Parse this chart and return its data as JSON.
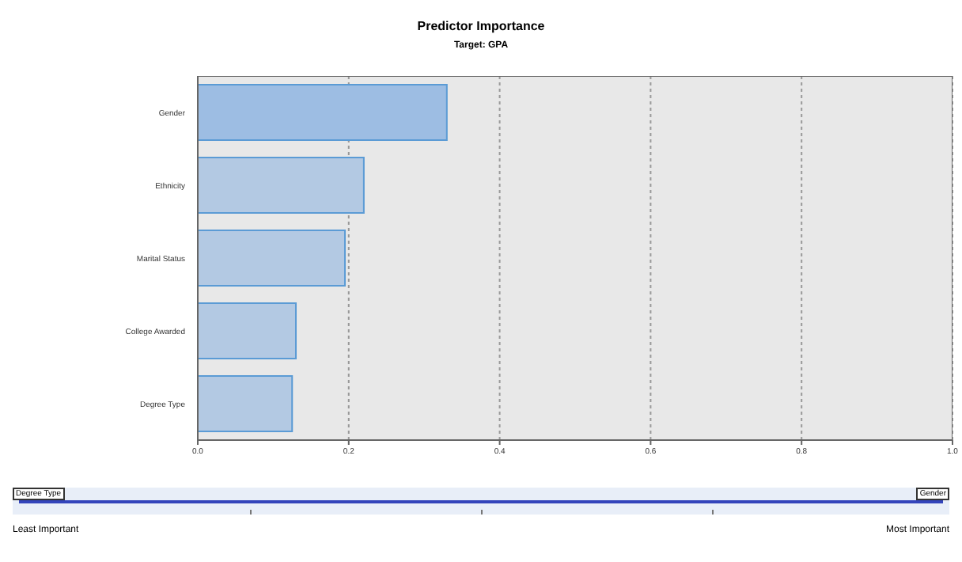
{
  "chart_data": {
    "type": "bar",
    "orientation": "horizontal",
    "title": "Predictor Importance",
    "subtitle": "Target: GPA",
    "categories": [
      "Gender",
      "Ethnicity",
      "Marital Status",
      "College Awarded",
      "Degree Type"
    ],
    "values": [
      0.33,
      0.22,
      0.195,
      0.13,
      0.125
    ],
    "colors": [
      "#9dbde3",
      "#b3c9e3",
      "#b3c9e3",
      "#b3c9e3",
      "#b3c9e3"
    ],
    "xlim": [
      0,
      1
    ],
    "xticks": [
      {
        "value": 0,
        "label": "0.0"
      },
      {
        "value": 0.2,
        "label": "0.2"
      },
      {
        "value": 0.4,
        "label": "0.4"
      },
      {
        "value": 0.6,
        "label": "0.6"
      },
      {
        "value": 0.8,
        "label": "0.8"
      },
      {
        "value": 1,
        "label": "1.0"
      }
    ],
    "grid": "x",
    "annotations": [
      "Degree Type",
      "Gender",
      "Least Important",
      "Most Important"
    ]
  }
}
